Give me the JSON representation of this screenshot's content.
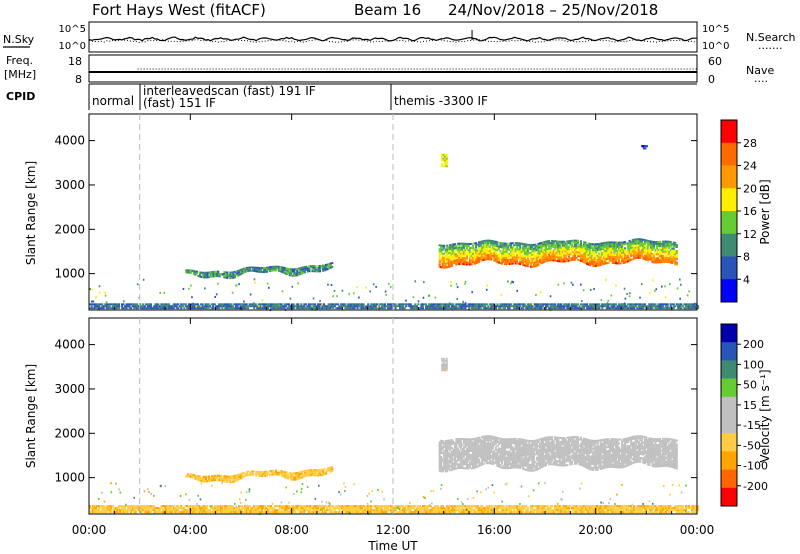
{
  "header": {
    "title": "Fort Hays West (fitACF)",
    "beam": "Beam 16",
    "dates": "24/Nov/2018 – 25/Nov/2018"
  },
  "noise_panel": {
    "left_label": "N.Sky",
    "left_ticks": [
      "10^5",
      "10^0"
    ],
    "right_label": "N.Search",
    "right_ticks": [
      "10^5",
      "10^0"
    ],
    "right_legend_dots": "......."
  },
  "freq_panel": {
    "left_label_line1": "Freq.",
    "left_label_line2": "[MHz]",
    "left_ticks": [
      "18",
      "8"
    ],
    "right_label": "Nave",
    "right_ticks": [
      "60",
      "0"
    ],
    "right_legend_dots": "...."
  },
  "cpid_panel": {
    "label": "CPID",
    "segments": [
      {
        "start_hour": 0.0,
        "end_hour": 2.0,
        "text": "normal",
        "text2": ""
      },
      {
        "start_hour": 2.0,
        "end_hour": 12.0,
        "text": "interleavedscan (fast) 191 IF",
        "text2": "(fast) 151 IF"
      },
      {
        "start_hour": 12.0,
        "end_hour": 24.0,
        "text": "themis -3300 IF",
        "text2": ""
      }
    ]
  },
  "colors": {
    "power_scale": [
      "#0000ff",
      "#2a55b8",
      "#3f8a72",
      "#66cc33",
      "#ffee00",
      "#ff9900",
      "#ff6a00",
      "#ff0000"
    ],
    "velocity_scale": [
      "#ff0000",
      "#ff6600",
      "#ffa500",
      "#ffcc44",
      "#c0c0c0",
      "#c0c0c0",
      "#66cc33",
      "#3f8a72",
      "#2a55b8",
      "#0000aa"
    ],
    "ground_scatter": "#c0c0c0"
  },
  "chart_data": [
    {
      "type": "heatmap",
      "name": "power",
      "ylabel": "Slant Range [km]",
      "xlabel": "Time UT",
      "x_range_hours": [
        0,
        24
      ],
      "ylim": [
        180,
        4600
      ],
      "y_ticks": [
        1000,
        2000,
        3000,
        4000
      ],
      "x_tick_labels": [
        "00:00",
        "04:00",
        "08:00",
        "12:00",
        "16:00",
        "20:00",
        "00:00"
      ],
      "colorbar": {
        "label": "Power [dB]",
        "ticks": [
          "4",
          "8",
          "12",
          "16",
          "20",
          "24",
          "28"
        ],
        "range": [
          0,
          32
        ]
      },
      "features": [
        {
          "kind": "near_range_band",
          "start_hour": 0.0,
          "end_hour": 24.0,
          "range_km": [
            200,
            330
          ],
          "value": 8
        },
        {
          "kind": "echo_band",
          "start_hour": 3.8,
          "end_hour": 9.6,
          "range_km_start": [
            910,
            1040
          ],
          "range_km_end": [
            1060,
            1220
          ],
          "value": 10
        },
        {
          "kind": "echo_band",
          "start_hour": 13.8,
          "end_hour": 23.2,
          "range_km_start": [
            1200,
            1700
          ],
          "range_km_end": [
            1250,
            1750
          ],
          "value": 20
        },
        {
          "kind": "patch",
          "start_hour": 13.9,
          "end_hour": 14.1,
          "range_km": [
            3400,
            3700
          ],
          "value": 16
        },
        {
          "kind": "patch",
          "start_hour": 21.8,
          "end_hour": 22.0,
          "range_km": [
            3800,
            3900
          ],
          "value": 4
        }
      ]
    },
    {
      "type": "heatmap",
      "name": "velocity",
      "ylabel": "Slant Range [km]",
      "xlabel": "Time UT",
      "x_range_hours": [
        0,
        24
      ],
      "ylim": [
        180,
        4600
      ],
      "y_ticks": [
        1000,
        2000,
        3000,
        4000
      ],
      "x_tick_labels": [
        "00:00",
        "04:00",
        "08:00",
        "12:00",
        "16:00",
        "20:00",
        "00:00"
      ],
      "colorbar": {
        "label": "Velocity [m s⁻¹]",
        "ticks": [
          "-200",
          "-100",
          "-50",
          "-15",
          "15",
          "50",
          "100",
          "200"
        ],
        "range": [
          -250,
          250
        ]
      },
      "features": [
        {
          "kind": "near_range_band",
          "start_hour": 0.0,
          "end_hour": 24.0,
          "range_km": [
            200,
            380
          ],
          "value": -40
        },
        {
          "kind": "echo_band",
          "start_hour": 3.8,
          "end_hour": 9.6,
          "range_km_start": [
            910,
            1040
          ],
          "range_km_end": [
            1060,
            1220
          ],
          "value": -40
        },
        {
          "kind": "ground_scatter_band",
          "start_hour": 13.8,
          "end_hour": 23.2,
          "range_km_start": [
            1200,
            1900
          ],
          "range_km_end": [
            1250,
            1900
          ],
          "value": 0
        },
        {
          "kind": "patch",
          "start_hour": 13.9,
          "end_hour": 14.1,
          "range_km": [
            3400,
            3700
          ],
          "value": 0
        }
      ]
    }
  ]
}
